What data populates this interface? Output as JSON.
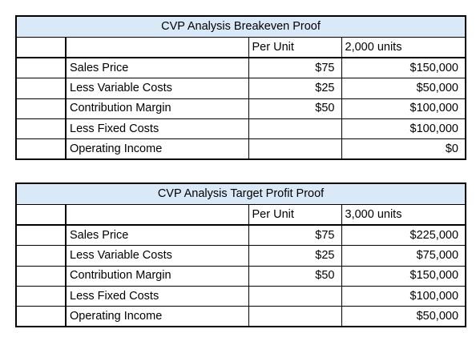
{
  "tables": [
    {
      "title": "CVP Analysis Breakeven Proof",
      "col_per_unit": "Per Unit",
      "col_total": "2,000 units",
      "rows": [
        {
          "label": "Sales Price",
          "per_unit": "$75",
          "total": "$150,000"
        },
        {
          "label": "Less Variable Costs",
          "per_unit": "$25",
          "total": "$50,000"
        },
        {
          "label": "Contribution Margin",
          "per_unit": "$50",
          "total": "$100,000"
        },
        {
          "label": "Less Fixed Costs",
          "per_unit": "",
          "total": "$100,000"
        },
        {
          "label": "Operating Income",
          "per_unit": "",
          "total": "$0"
        }
      ]
    },
    {
      "title": "CVP Analysis Target Profit Proof",
      "col_per_unit": "Per Unit",
      "col_total": "3,000 units",
      "rows": [
        {
          "label": "Sales Price",
          "per_unit": "$75",
          "total": "$225,000"
        },
        {
          "label": "Less Variable Costs",
          "per_unit": "$25",
          "total": "$75,000"
        },
        {
          "label": "Contribution Margin",
          "per_unit": "$50",
          "total": "$150,000"
        },
        {
          "label": "Less Fixed Costs",
          "per_unit": "",
          "total": "$100,000"
        },
        {
          "label": "Operating Income",
          "per_unit": "",
          "total": "$50,000"
        }
      ]
    }
  ],
  "colors": {
    "title_fill": "#dae9f8",
    "border": "#000000"
  }
}
